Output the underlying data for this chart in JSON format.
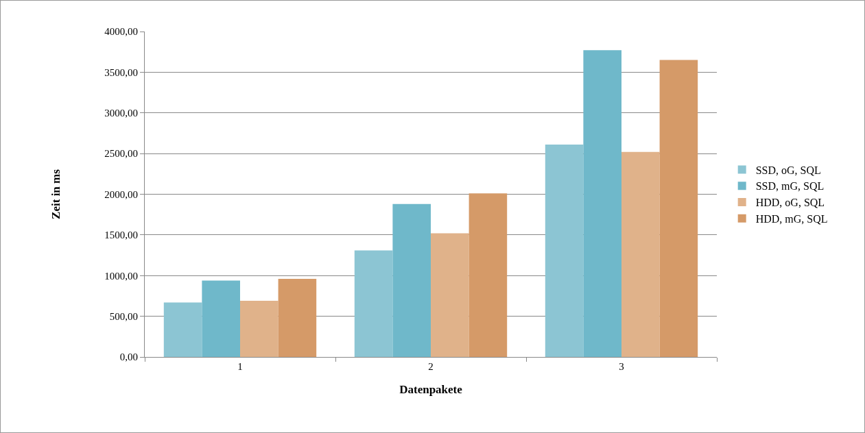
{
  "chart_data": {
    "type": "bar",
    "xlabel": "Datenpakete",
    "ylabel": "Zeit in ms",
    "categories": [
      "1",
      "2",
      "3"
    ],
    "series": [
      {
        "name": "SSD, oG, SQL",
        "color": "#8cc5d3",
        "values": [
          670,
          1310,
          2610
        ]
      },
      {
        "name": "SSD, mG, SQL",
        "color": "#6fb8ca",
        "values": [
          940,
          1880,
          3770
        ]
      },
      {
        "name": "HDD, oG, SQL",
        "color": "#e0b28a",
        "values": [
          690,
          1520,
          2520
        ]
      },
      {
        "name": "HDD, mG, SQL",
        "color": "#d59a68",
        "values": [
          960,
          2010,
          3650
        ]
      }
    ],
    "ylim": [
      0,
      4000
    ],
    "yticks": [
      {
        "value": 0,
        "label": "0,00"
      },
      {
        "value": 500,
        "label": "500,00"
      },
      {
        "value": 1000,
        "label": "1000,00"
      },
      {
        "value": 1500,
        "label": "1500,00"
      },
      {
        "value": 2000,
        "label": "2000,00"
      },
      {
        "value": 2500,
        "label": "2500,00"
      },
      {
        "value": 3000,
        "label": "3000,00"
      },
      {
        "value": 3500,
        "label": "3500,00"
      },
      {
        "value": 4000,
        "label": "4000,00"
      }
    ],
    "grid": "y",
    "legend": "right"
  }
}
